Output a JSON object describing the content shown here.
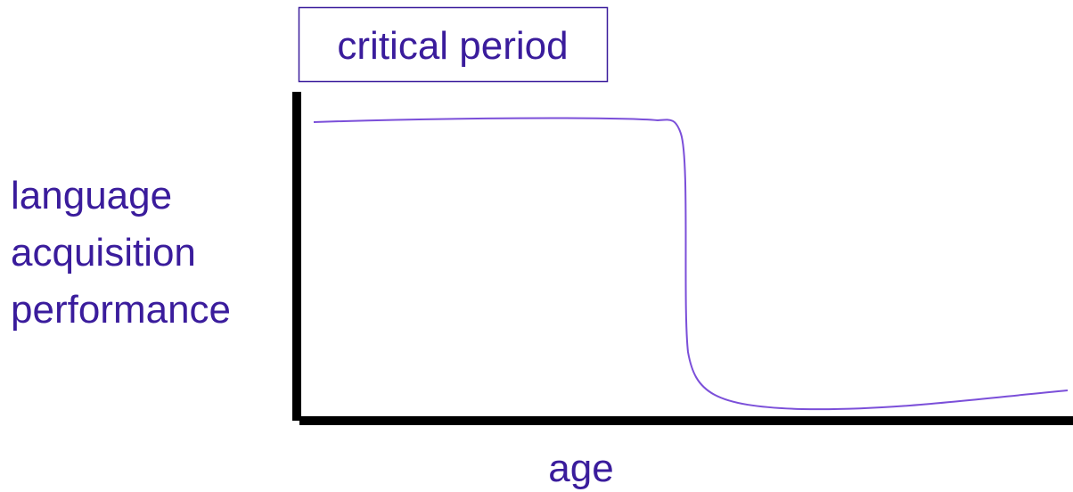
{
  "header": {
    "title": "critical period"
  },
  "y_axis": {
    "label_lines": [
      "language",
      "acquisition",
      "performance"
    ]
  },
  "x_axis": {
    "label": "age"
  }
}
